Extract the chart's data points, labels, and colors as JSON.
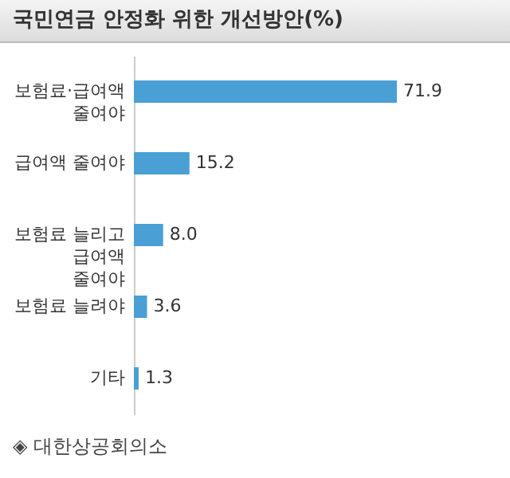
{
  "chart_data": {
    "type": "bar",
    "orientation": "horizontal",
    "title": "국민연금 안정화 위한 개선방안(%)",
    "categories": [
      "보험료·급여액\n줄여야",
      "급여액 줄여야",
      "보험료 늘리고\n급여액\n줄여야",
      "보험료 늘려야",
      "기타"
    ],
    "values": [
      71.9,
      15.2,
      8.0,
      3.6,
      1.3
    ],
    "value_labels": [
      "71.9",
      "15.2",
      "8.0",
      "3.6",
      "1.3"
    ],
    "color": "#4a9fd4",
    "annotations": [
      "◈ 대한상공회의소"
    ]
  }
}
